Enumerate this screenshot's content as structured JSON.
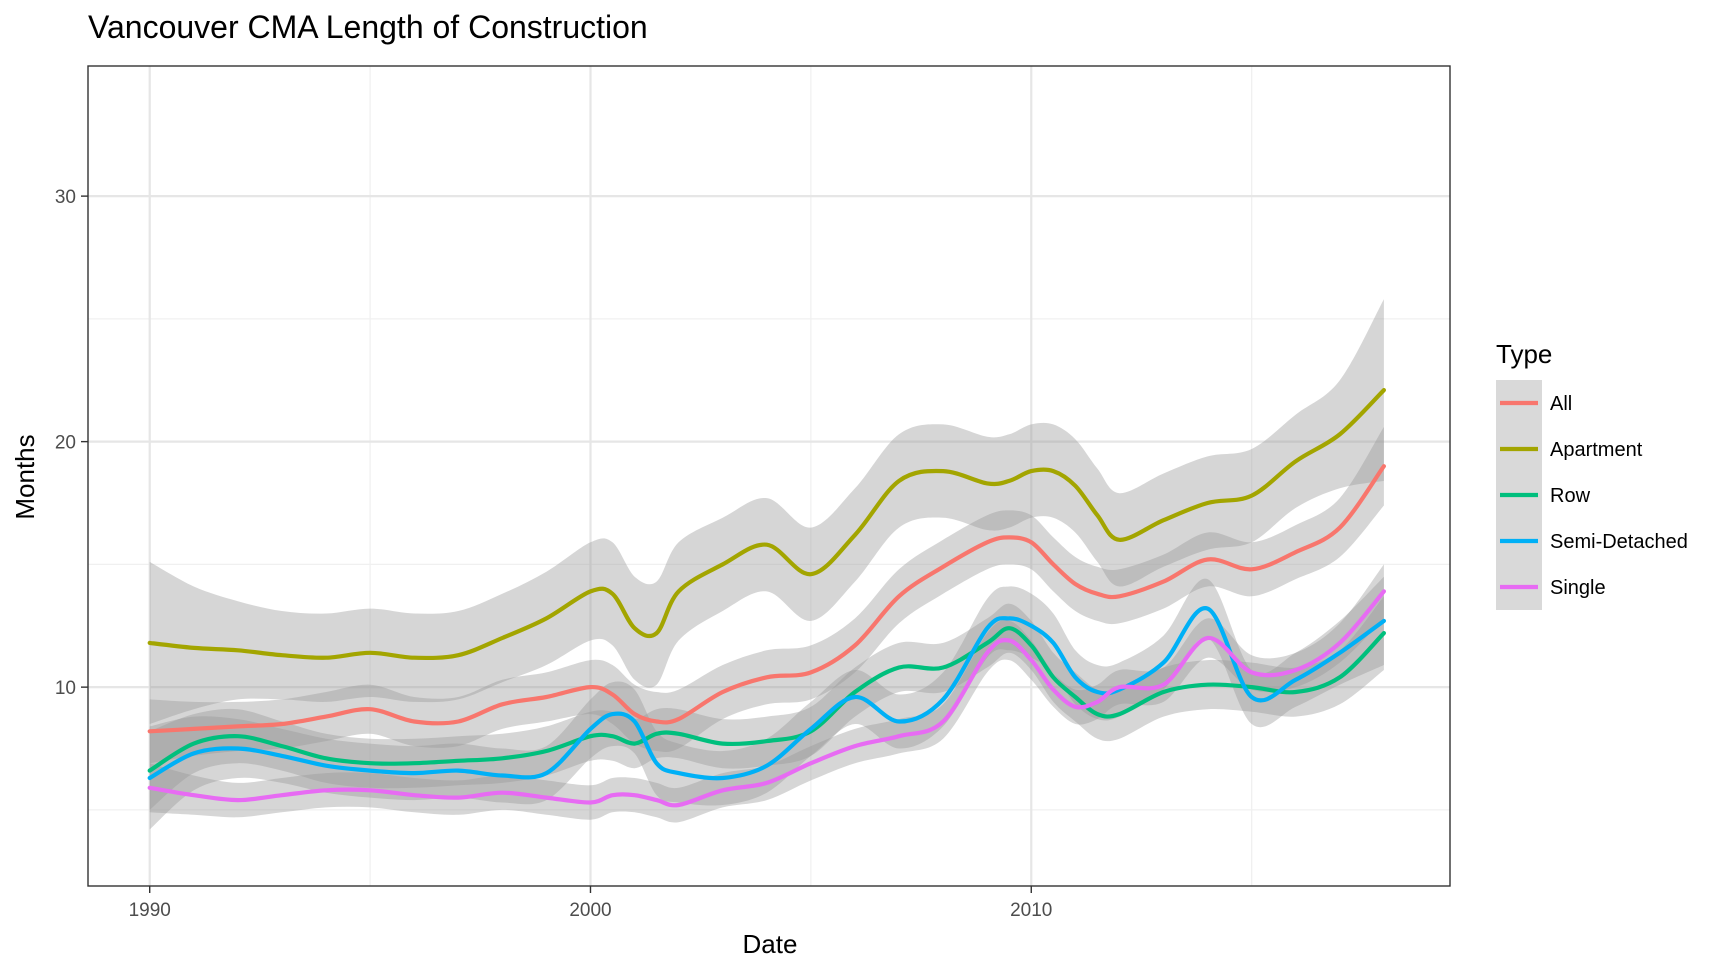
{
  "chart_data": {
    "type": "line",
    "title": "Vancouver CMA Length of Construction",
    "xlabel": "Date",
    "ylabel": "Months",
    "xlim": [
      1988.6,
      2019.5
    ],
    "ylim": [
      1.9,
      35.3
    ],
    "x_ticks": [
      1990,
      2000,
      2010
    ],
    "x_tick_labels": [
      "1990",
      "2000",
      "2010"
    ],
    "y_ticks": [
      10,
      20,
      30
    ],
    "y_tick_labels": [
      "10",
      "20",
      "30"
    ],
    "grid": true,
    "legend": {
      "title": "Type",
      "position": "right"
    },
    "x": [
      1990,
      1991,
      1992,
      1993,
      1994,
      1995,
      1996,
      1997,
      1998,
      1999,
      2000,
      2000.5,
      2001,
      2001.5,
      2002,
      2003,
      2004,
      2005,
      2006,
      2007,
      2008,
      2009,
      2009.5,
      2010,
      2010.5,
      2011,
      2011.5,
      2012,
      2013,
      2014,
      2015,
      2016,
      2017,
      2018
    ],
    "series": [
      {
        "name": "All",
        "color": "#F8766D",
        "values": [
          8.2,
          8.3,
          8.4,
          8.5,
          8.8,
          9.1,
          8.6,
          8.6,
          9.3,
          9.6,
          10.0,
          9.7,
          8.9,
          8.6,
          8.7,
          9.8,
          10.4,
          10.6,
          11.7,
          13.7,
          14.9,
          15.9,
          16.1,
          15.9,
          15.0,
          14.2,
          13.8,
          13.7,
          14.3,
          15.2,
          14.8,
          15.5,
          16.5,
          19.0
        ],
        "band": [
          1.3,
          1.1,
          1.0,
          1.0,
          1.0,
          1.0,
          1.0,
          1.0,
          1.0,
          1.0,
          1.1,
          1.2,
          1.2,
          1.2,
          1.2,
          1.1,
          1.1,
          1.1,
          1.1,
          1.1,
          1.1,
          1.1,
          1.1,
          1.1,
          1.1,
          1.1,
          1.1,
          1.1,
          1.1,
          1.1,
          1.1,
          1.1,
          1.2,
          1.6
        ]
      },
      {
        "name": "Apartment",
        "color": "#A3A500",
        "values": [
          11.8,
          11.6,
          11.5,
          11.3,
          11.2,
          11.4,
          11.2,
          11.3,
          12.0,
          12.8,
          13.9,
          13.8,
          12.4,
          12.2,
          13.9,
          15.0,
          15.8,
          14.6,
          16.2,
          18.4,
          18.8,
          18.3,
          18.4,
          18.8,
          18.8,
          18.2,
          17.0,
          16.0,
          16.8,
          17.5,
          17.8,
          19.2,
          20.3,
          22.1
        ],
        "band": [
          3.3,
          2.5,
          2.0,
          1.8,
          1.8,
          1.8,
          1.8,
          1.8,
          1.8,
          1.9,
          2.0,
          2.1,
          2.1,
          2.1,
          2.0,
          1.9,
          1.9,
          1.9,
          1.9,
          1.9,
          1.9,
          1.9,
          1.9,
          1.9,
          1.9,
          1.9,
          1.9,
          1.9,
          1.9,
          1.9,
          1.9,
          1.9,
          2.2,
          3.7
        ]
      },
      {
        "name": "Row",
        "color": "#00BF7D",
        "values": [
          6.6,
          7.7,
          8.0,
          7.6,
          7.1,
          6.9,
          6.9,
          7.0,
          7.1,
          7.4,
          8.0,
          8.0,
          7.7,
          8.1,
          8.1,
          7.7,
          7.8,
          8.2,
          9.8,
          10.8,
          10.8,
          11.8,
          12.4,
          11.7,
          10.4,
          9.6,
          8.9,
          8.9,
          9.8,
          10.1,
          10.0,
          9.8,
          10.4,
          12.2
        ],
        "band": [
          1.6,
          1.2,
          1.1,
          1.0,
          1.0,
          1.0,
          1.0,
          1.0,
          1.0,
          1.0,
          1.0,
          1.0,
          1.0,
          1.0,
          1.0,
          1.0,
          1.0,
          1.0,
          1.0,
          1.0,
          1.0,
          1.0,
          1.0,
          1.0,
          1.0,
          1.0,
          1.0,
          1.0,
          1.0,
          1.0,
          1.0,
          1.0,
          1.1,
          1.5
        ]
      },
      {
        "name": "Semi-Detached",
        "color": "#00B0F6",
        "values": [
          6.3,
          7.3,
          7.5,
          7.2,
          6.8,
          6.6,
          6.5,
          6.6,
          6.4,
          6.5,
          8.3,
          8.9,
          8.6,
          6.9,
          6.5,
          6.3,
          6.8,
          8.3,
          9.6,
          8.6,
          9.5,
          12.4,
          12.8,
          12.5,
          11.8,
          10.4,
          9.8,
          9.9,
          11.0,
          13.2,
          9.6,
          10.3,
          11.4,
          12.7
        ],
        "band": [
          2.1,
          1.5,
          1.2,
          1.1,
          1.1,
          1.1,
          1.1,
          1.1,
          1.1,
          1.1,
          1.2,
          1.3,
          1.3,
          1.3,
          1.2,
          1.1,
          1.1,
          1.1,
          1.1,
          1.1,
          1.1,
          1.2,
          1.3,
          1.3,
          1.2,
          1.1,
          1.1,
          1.1,
          1.1,
          1.2,
          1.1,
          1.1,
          1.3,
          1.8
        ]
      },
      {
        "name": "Single",
        "color": "#E76BF3",
        "values": [
          5.9,
          5.6,
          5.4,
          5.6,
          5.8,
          5.8,
          5.6,
          5.5,
          5.7,
          5.5,
          5.3,
          5.6,
          5.6,
          5.4,
          5.2,
          5.8,
          6.1,
          6.9,
          7.6,
          8.0,
          8.6,
          11.4,
          11.9,
          11.1,
          9.9,
          9.2,
          9.4,
          10.0,
          10.1,
          12.0,
          10.6,
          10.7,
          11.8,
          13.9
        ],
        "band": [
          1.0,
          0.8,
          0.7,
          0.7,
          0.7,
          0.7,
          0.7,
          0.7,
          0.7,
          0.7,
          0.7,
          0.7,
          0.7,
          0.7,
          0.7,
          0.7,
          0.7,
          0.7,
          0.7,
          0.7,
          0.7,
          0.8,
          0.8,
          0.8,
          0.7,
          0.7,
          0.7,
          0.7,
          0.7,
          0.8,
          0.7,
          0.7,
          0.8,
          1.1
        ]
      }
    ]
  }
}
